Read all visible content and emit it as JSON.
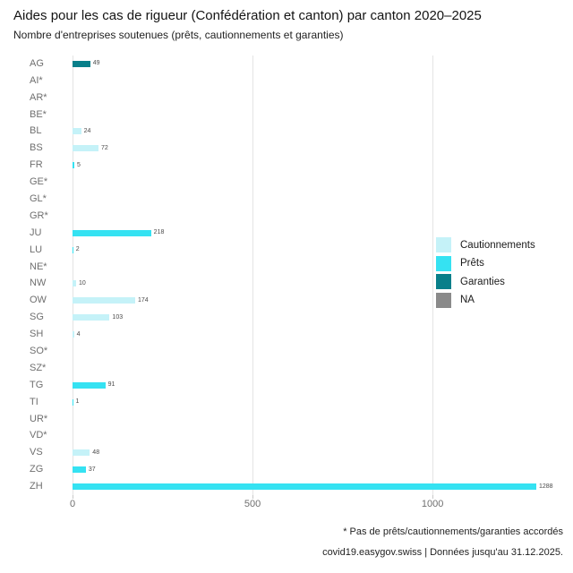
{
  "title": "Aides pour les cas de rigueur (Confédération et canton) par canton 2020–2025",
  "subtitle": "Nombre d'entreprises soutenues (prêts, cautionnements et garanties)",
  "footer": {
    "note": "* Pas de prêts/cautionnements/garanties accordés",
    "source": "covid19.easygov.swiss | Données jusqu'au 31.12.2025."
  },
  "colors": {
    "cautionnements": "#c5f2f8",
    "prets": "#35e2f2",
    "garanties": "#087f8a",
    "na": "#8a8a8a",
    "grid": "#e4e4e4",
    "tick": "#c9c9c9",
    "axis_text": "#6f6f6f",
    "value_text": "#4a4a4a"
  },
  "legend": {
    "items": [
      {
        "label": "Cautionnements",
        "key": "cautionnements"
      },
      {
        "label": "Prêts",
        "key": "prets"
      },
      {
        "label": "Garanties",
        "key": "garanties"
      },
      {
        "label": "NA",
        "key": "na"
      }
    ]
  },
  "chart_data": {
    "type": "bar",
    "orientation": "horizontal",
    "title": "Aides pour les cas de rigueur (Confédération et canton) par canton 2020–2025",
    "subtitle": "Nombre d'entreprises soutenues (prêts, cautionnements et garanties)",
    "x_ticks": [
      0,
      500,
      1000
    ],
    "xlim": [
      0,
      1375
    ],
    "grid": "vertical-only",
    "legend_position": "right",
    "categories": [
      "AG",
      "AI*",
      "AR*",
      "BE*",
      "BL",
      "BS",
      "FR",
      "GE*",
      "GL*",
      "GR*",
      "JU",
      "LU",
      "NE*",
      "NW",
      "OW",
      "SG",
      "SH",
      "SO*",
      "SZ*",
      "TG",
      "TI",
      "UR*",
      "VD*",
      "VS",
      "ZG",
      "ZH"
    ],
    "bars": [
      {
        "canton": "AG",
        "value": 49,
        "type": "garanties"
      },
      {
        "canton": "AI*",
        "value": null,
        "type": null
      },
      {
        "canton": "AR*",
        "value": null,
        "type": null
      },
      {
        "canton": "BE*",
        "value": null,
        "type": null
      },
      {
        "canton": "BL",
        "value": 24,
        "type": "cautionnements"
      },
      {
        "canton": "BS",
        "value": 72,
        "type": "cautionnements"
      },
      {
        "canton": "FR",
        "value": 5,
        "type": "prets"
      },
      {
        "canton": "GE*",
        "value": null,
        "type": null
      },
      {
        "canton": "GL*",
        "value": null,
        "type": null
      },
      {
        "canton": "GR*",
        "value": null,
        "type": null
      },
      {
        "canton": "JU",
        "value": 218,
        "type": "prets"
      },
      {
        "canton": "LU",
        "value": 2,
        "type": "prets"
      },
      {
        "canton": "NE*",
        "value": null,
        "type": null
      },
      {
        "canton": "NW",
        "value": 10,
        "type": "cautionnements"
      },
      {
        "canton": "OW",
        "value": 174,
        "type": "cautionnements"
      },
      {
        "canton": "SG",
        "value": 103,
        "type": "cautionnements"
      },
      {
        "canton": "SH",
        "value": 4,
        "type": "cautionnements"
      },
      {
        "canton": "SO*",
        "value": null,
        "type": null
      },
      {
        "canton": "SZ*",
        "value": null,
        "type": null
      },
      {
        "canton": "TG",
        "value": 91,
        "type": "prets"
      },
      {
        "canton": "TI",
        "value": 1,
        "type": "prets"
      },
      {
        "canton": "UR*",
        "value": null,
        "type": null
      },
      {
        "canton": "VD*",
        "value": null,
        "type": null
      },
      {
        "canton": "VS",
        "value": 48,
        "type": "cautionnements"
      },
      {
        "canton": "ZG",
        "value": 37,
        "type": "prets"
      },
      {
        "canton": "ZH",
        "value": 1288,
        "type": "prets"
      }
    ]
  }
}
